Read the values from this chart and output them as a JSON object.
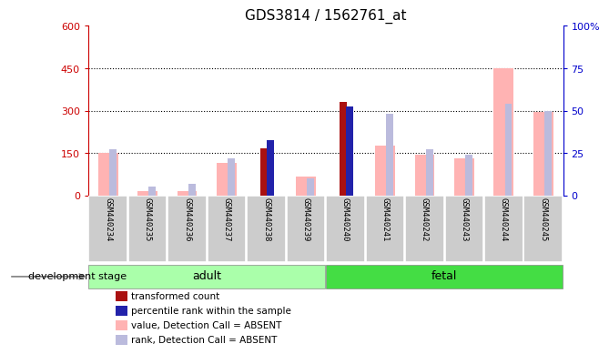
{
  "title": "GDS3814 / 1562761_at",
  "samples": [
    "GSM440234",
    "GSM440235",
    "GSM440236",
    "GSM440237",
    "GSM440238",
    "GSM440239",
    "GSM440240",
    "GSM440241",
    "GSM440242",
    "GSM440243",
    "GSM440244",
    "GSM440245"
  ],
  "groups": [
    "adult",
    "adult",
    "adult",
    "adult",
    "adult",
    "adult",
    "fetal",
    "fetal",
    "fetal",
    "fetal",
    "fetal",
    "fetal"
  ],
  "transformed_count": [
    null,
    null,
    null,
    null,
    165,
    null,
    330,
    null,
    null,
    null,
    null,
    null
  ],
  "percentile_rank_val": [
    null,
    null,
    null,
    null,
    195,
    null,
    315,
    null,
    null,
    null,
    null,
    null
  ],
  "value_absent": [
    150,
    15,
    15,
    115,
    null,
    65,
    null,
    175,
    145,
    130,
    450,
    295
  ],
  "rank_absent": [
    27,
    5,
    7,
    22,
    null,
    10,
    null,
    48,
    27,
    24,
    54,
    50
  ],
  "ylim_left": [
    0,
    600
  ],
  "ylim_right": [
    0,
    100
  ],
  "yticks_left": [
    0,
    150,
    300,
    450,
    600
  ],
  "yticks_right": [
    0,
    25,
    50,
    75,
    100
  ],
  "color_red_dark": "#AA1111",
  "color_blue_dark": "#2222AA",
  "color_pink": "#FFB3B3",
  "color_blue_light": "#BBBBDD",
  "color_adult_bg": "#AAFFAA",
  "color_fetal_bg": "#44DD44",
  "color_sample_bg": "#CCCCCC",
  "left_ylabel_color": "#CC0000",
  "right_ylabel_color": "#0000CC",
  "legend_items": [
    {
      "label": "transformed count",
      "color": "#AA1111"
    },
    {
      "label": "percentile rank within the sample",
      "color": "#2222AA"
    },
    {
      "label": "value, Detection Call = ABSENT",
      "color": "#FFB3B3"
    },
    {
      "label": "rank, Detection Call = ABSENT",
      "color": "#BBBBDD"
    }
  ]
}
